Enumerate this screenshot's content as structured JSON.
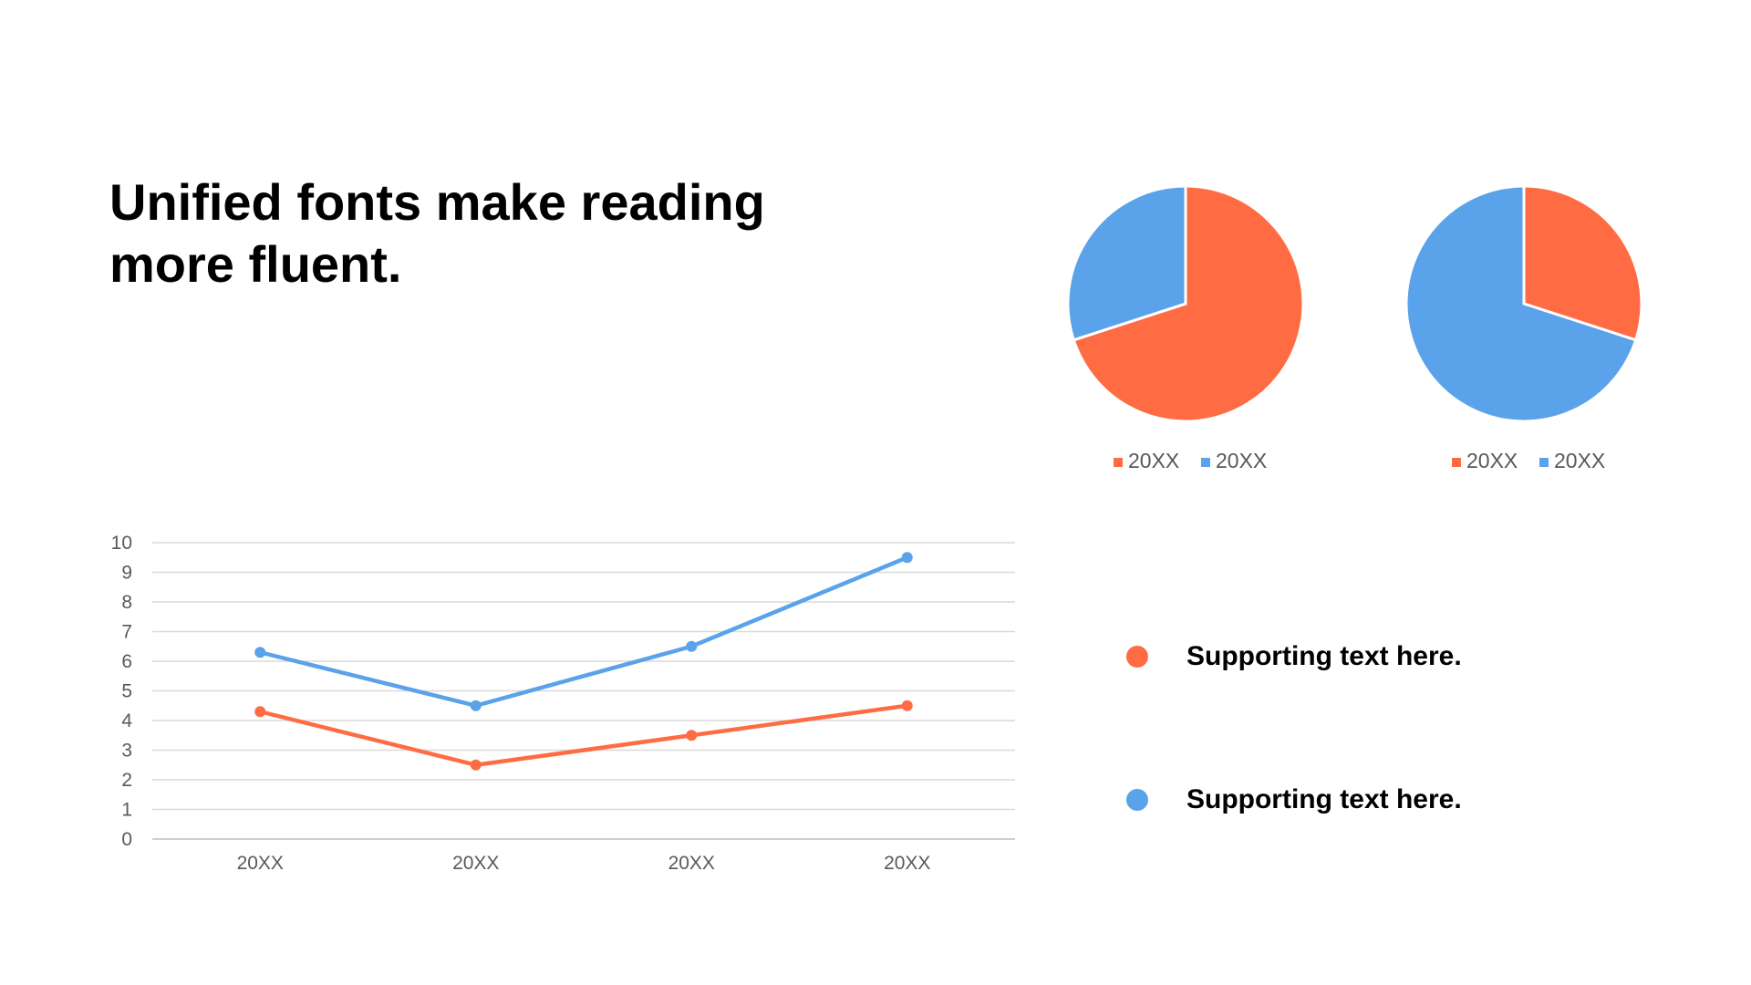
{
  "title": "Unified fonts make reading more fluent.",
  "colors": {
    "orange": "#FF6C44",
    "blue": "#5AA2E9"
  },
  "chart_data": [
    {
      "type": "line",
      "categories": [
        "20XX",
        "20XX",
        "20XX",
        "20XX"
      ],
      "series": [
        {
          "values": [
            6.3,
            4.5,
            6.5,
            9.5
          ],
          "color": "#5AA2E9"
        },
        {
          "values": [
            4.3,
            2.5,
            3.5,
            4.5
          ],
          "color": "#FF6C44"
        }
      ],
      "ylim": [
        0,
        10
      ],
      "yticks": [
        "0",
        "1",
        "2",
        "3",
        "4",
        "5",
        "6",
        "7",
        "8",
        "9",
        "10"
      ],
      "grid": true
    },
    {
      "type": "pie",
      "labels": [
        "20XX",
        "20XX"
      ],
      "values": [
        70,
        30
      ],
      "colors": [
        "#FF6C44",
        "#5AA2E9"
      ],
      "legend": "bottom"
    },
    {
      "type": "pie",
      "labels": [
        "20XX",
        "20XX"
      ],
      "values": [
        30,
        70
      ],
      "colors": [
        "#FF6C44",
        "#5AA2E9"
      ],
      "legend": "bottom"
    }
  ],
  "supporting": [
    {
      "text": "Supporting text here.",
      "color": "#FF6C44"
    },
    {
      "text": "Supporting text here.",
      "color": "#5AA2E9"
    }
  ]
}
